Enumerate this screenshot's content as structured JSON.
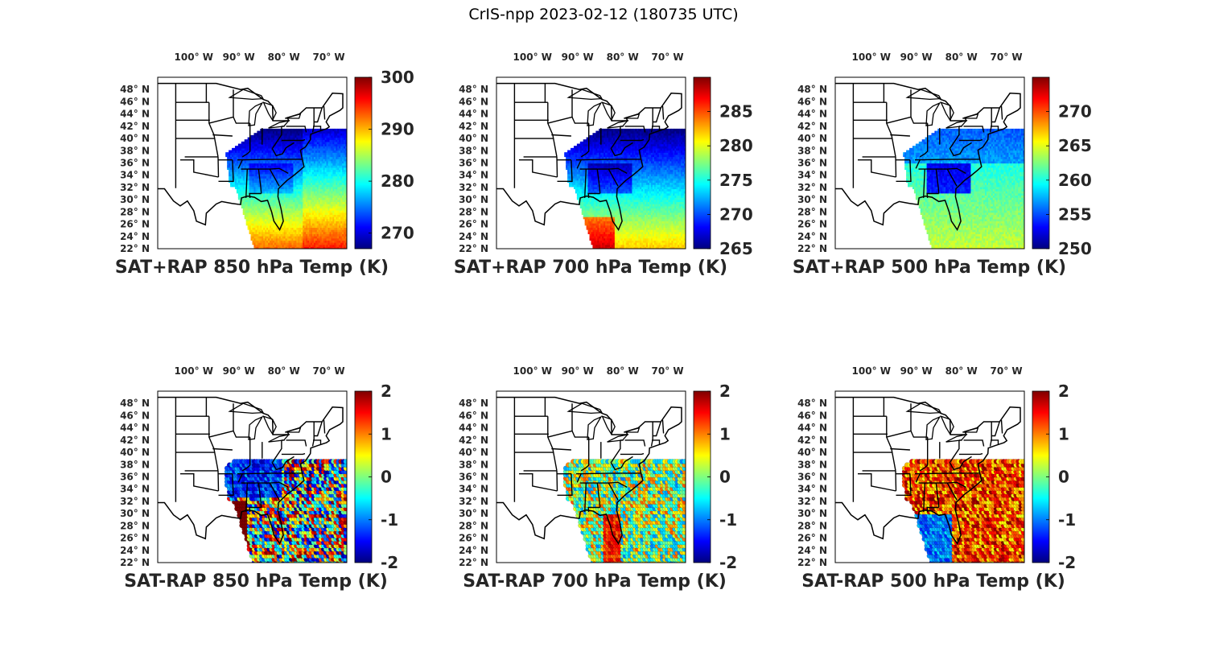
{
  "figure": {
    "title": "CrIS-npp 2023-02-12 (180735 UTC)"
  },
  "colors": {
    "jet": [
      "#00007f",
      "#0000ff",
      "#007fff",
      "#00ffff",
      "#7fff7f",
      "#ffff00",
      "#ff7f00",
      "#ff0000",
      "#7f0000"
    ]
  },
  "axes": {
    "lon_ticks": [
      {
        "value": -100,
        "label": "100° W"
      },
      {
        "value": -90,
        "label": "90° W"
      },
      {
        "value": -80,
        "label": "80° W"
      },
      {
        "value": -70,
        "label": "70° W"
      }
    ],
    "lat_ticks": [
      {
        "value": 48,
        "label": "48° N"
      },
      {
        "value": 46,
        "label": "46° N"
      },
      {
        "value": 44,
        "label": "44° N"
      },
      {
        "value": 42,
        "label": "42° N"
      },
      {
        "value": 40,
        "label": "40° N"
      },
      {
        "value": 38,
        "label": "38° N"
      },
      {
        "value": 36,
        "label": "36° N"
      },
      {
        "value": 34,
        "label": "34° N"
      },
      {
        "value": 32,
        "label": "32° N"
      },
      {
        "value": 30,
        "label": "30° N"
      },
      {
        "value": 28,
        "label": "28° N"
      },
      {
        "value": 26,
        "label": "26° N"
      },
      {
        "value": 24,
        "label": "24° N"
      },
      {
        "value": 22,
        "label": "22° N"
      }
    ]
  },
  "chart_data": [
    {
      "type": "heatmap",
      "title": "SAT+RAP 850 hPa Temp (K)",
      "xlim": [
        -108,
        -66
      ],
      "ylim": [
        22,
        50
      ],
      "clim": [
        267,
        300
      ],
      "colorbar_ticks": [
        270,
        280,
        290,
        300
      ],
      "field": "abs850"
    },
    {
      "type": "heatmap",
      "title": "SAT+RAP 700 hPa Temp (K)",
      "xlim": [
        -108,
        -66
      ],
      "ylim": [
        22,
        50
      ],
      "clim": [
        265,
        290
      ],
      "colorbar_ticks": [
        265,
        270,
        275,
        280,
        285
      ],
      "field": "abs700"
    },
    {
      "type": "heatmap",
      "title": "SAT+RAP 500 hPa Temp (K)",
      "xlim": [
        -108,
        -66
      ],
      "ylim": [
        22,
        50
      ],
      "clim": [
        250,
        275
      ],
      "colorbar_ticks": [
        250,
        255,
        260,
        265,
        270
      ],
      "field": "abs500"
    },
    {
      "type": "scatter",
      "title": "SAT-RAP 850 hPa Temp (K)",
      "xlim": [
        -108,
        -66
      ],
      "ylim": [
        22,
        50
      ],
      "clim": [
        -2,
        2
      ],
      "colorbar_ticks": [
        -2,
        -1,
        0,
        1,
        2
      ],
      "field": "diff850"
    },
    {
      "type": "scatter",
      "title": "SAT-RAP 700 hPa Temp (K)",
      "xlim": [
        -108,
        -66
      ],
      "ylim": [
        22,
        50
      ],
      "clim": [
        -2,
        2
      ],
      "colorbar_ticks": [
        -2,
        -1,
        0,
        1,
        2
      ],
      "field": "diff700"
    },
    {
      "type": "scatter",
      "title": "SAT-RAP 500 hPa Temp (K)",
      "xlim": [
        -108,
        -66
      ],
      "ylim": [
        22,
        50
      ],
      "clim": [
        -2,
        2
      ],
      "colorbar_ticks": [
        -2,
        -1,
        0,
        1,
        2
      ],
      "field": "diff500"
    }
  ]
}
